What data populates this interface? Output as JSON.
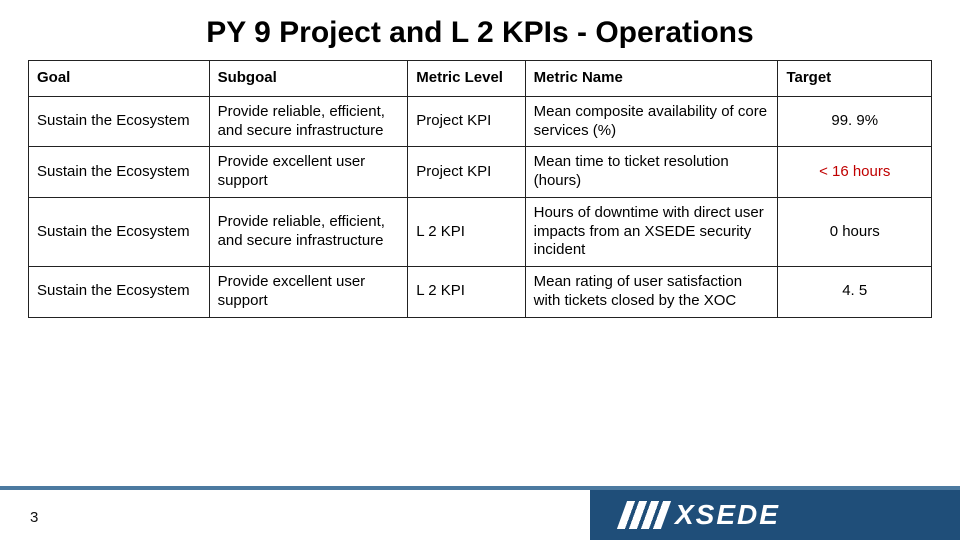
{
  "title": "PY 9 Project and L 2 KPIs - Operations",
  "page_number": "3",
  "logo_text": "XSEDE",
  "colors": {
    "footer_bar": "#1f4e79",
    "footer_line": "#4c7aa0",
    "highlight_text": "#c00000",
    "border": "#222222"
  },
  "table": {
    "columns": [
      "Goal",
      "Subgoal",
      "Metric Level",
      "Metric Name",
      "Target"
    ],
    "rows": [
      {
        "goal": "Sustain the Ecosystem",
        "subgoal": "Provide reliable, efficient, and secure infrastructure",
        "metric_level": "Project KPI",
        "metric_name": "Mean composite availability of core services (%)",
        "target": "99. 9%",
        "target_highlight": false
      },
      {
        "goal": "Sustain the Ecosystem",
        "subgoal": "Provide excellent user support",
        "metric_level": "Project KPI",
        "metric_name": "Mean time to ticket resolution (hours)",
        "target": "< 16 hours",
        "target_highlight": true
      },
      {
        "goal": "Sustain the Ecosystem",
        "subgoal": "Provide reliable, efficient, and secure infrastructure",
        "metric_level": "L 2 KPI",
        "metric_name": "Hours of downtime with direct user impacts from an XSEDE security incident",
        "target": "0 hours",
        "target_highlight": false
      },
      {
        "goal": "Sustain the Ecosystem",
        "subgoal": "Provide excellent user support",
        "metric_level": "L 2 KPI",
        "metric_name": "Mean rating of user satisfaction with tickets closed by the XOC",
        "target": "4. 5",
        "target_highlight": false
      }
    ]
  }
}
